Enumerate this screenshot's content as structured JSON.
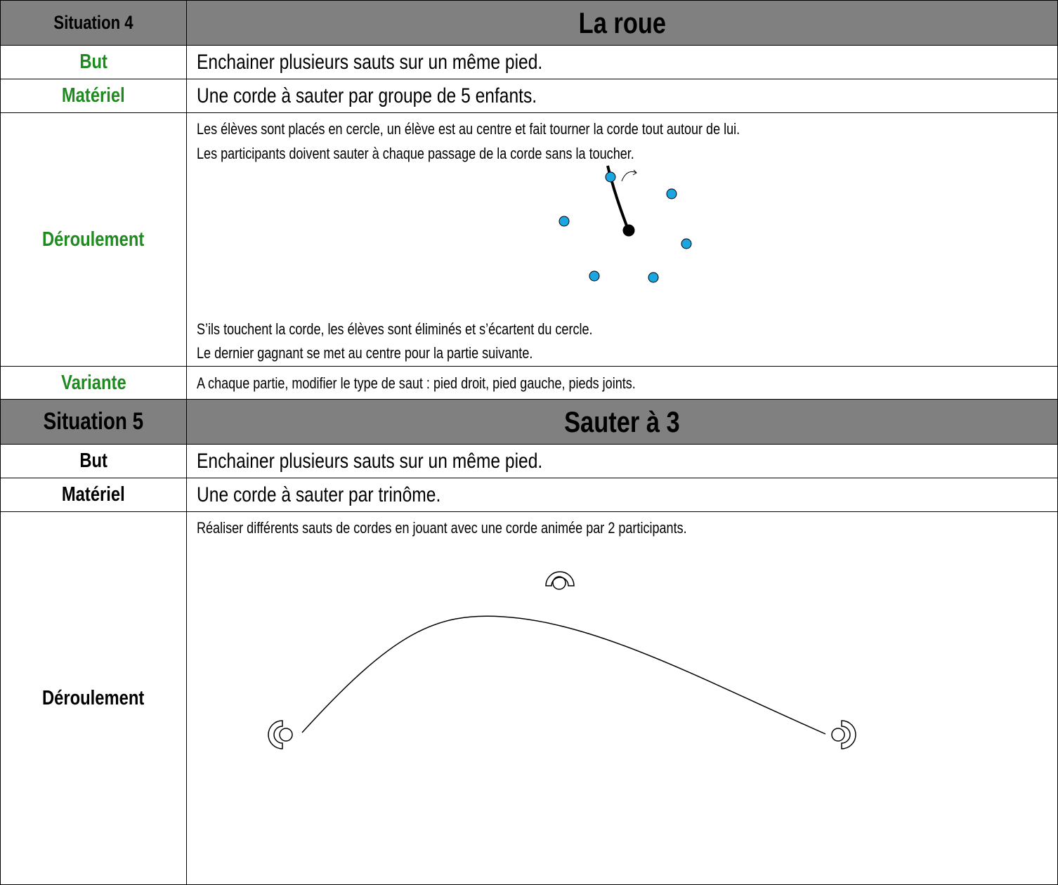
{
  "situations": [
    {
      "header": {
        "label": "Situation 4",
        "title": "La roue"
      },
      "but": {
        "label": "But",
        "text": "Enchainer plusieurs sauts sur un même pied."
      },
      "materiel": {
        "label": "Matériel",
        "text": "Une corde à sauter par groupe de 5 enfants."
      },
      "deroulement": {
        "label": "Déroulement",
        "intro": [
          "Les élèves sont placés en cercle, un élève est au centre et fait tourner la corde tout autour de lui.",
          "Les participants doivent sauter à chaque passage de la corde sans la toucher."
        ],
        "outro": [
          "S’ils touchent la corde, les élèves sont éliminés et s’écartent du cercle.",
          "Le dernier gagnant se met au centre pour la partie suivante."
        ]
      },
      "variante": {
        "label": "Variante",
        "text": "A chaque partie, modifier le type de saut : pied droit, pied gauche, pieds joints."
      }
    },
    {
      "header": {
        "label": "Situation 5",
        "title": "Sauter à 3"
      },
      "but": {
        "label": "But",
        "text": "Enchainer plusieurs sauts sur un même pied."
      },
      "materiel": {
        "label": "Matériel",
        "text": "Une corde à sauter par trinôme."
      },
      "deroulement": {
        "label": "Déroulement",
        "intro": [
          "Réaliser différents sauts de cordes en jouant avec une corde animée par 2 participants."
        ]
      }
    }
  ]
}
